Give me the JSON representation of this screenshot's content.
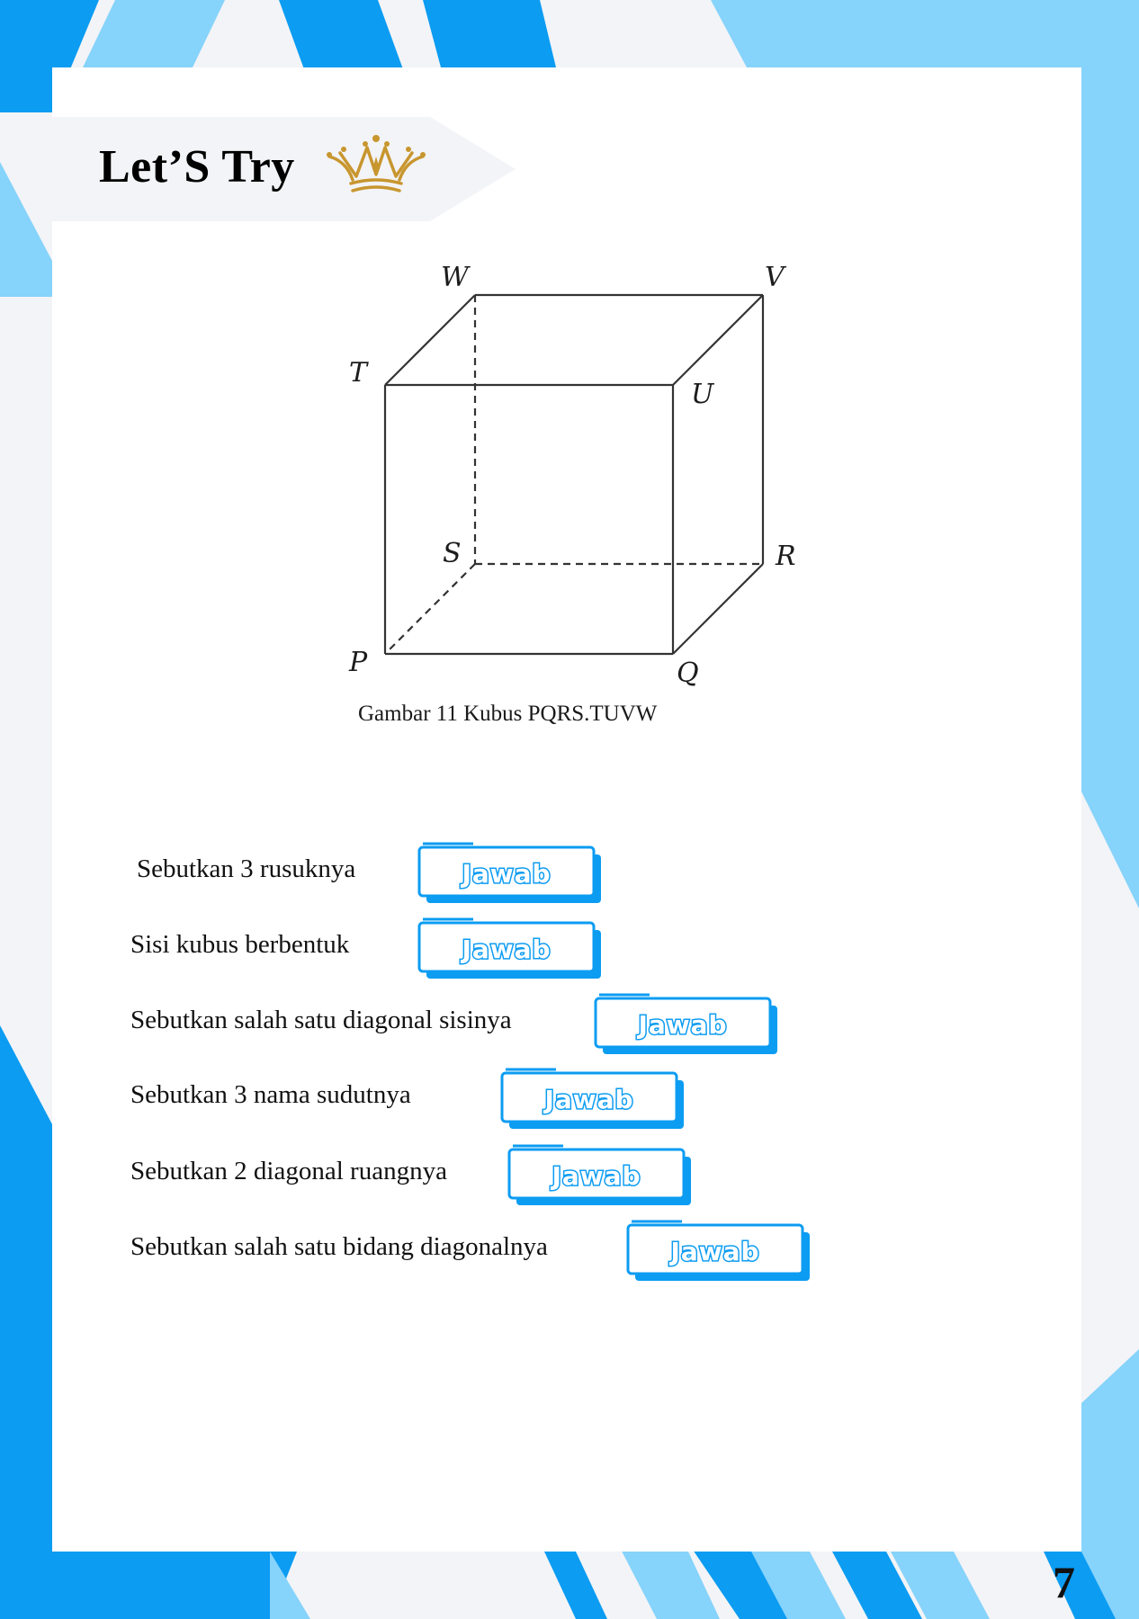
{
  "header": {
    "title": "Let’S Try",
    "icon": "crown-icon"
  },
  "figure": {
    "vertex_labels": {
      "W": "W",
      "V": "V",
      "T": "T",
      "U": "U",
      "S": "S",
      "R": "R",
      "P": "P",
      "Q": "Q"
    },
    "caption": "Gambar 11 Kubus PQRS.TUVW"
  },
  "questions": [
    {
      "text": "Sebutkan 3 rusuknya",
      "button_label": "Jawab"
    },
    {
      "text": "Sisi kubus berbentuk",
      "button_label": "Jawab"
    },
    {
      "text": "Sebutkan salah satu diagonal sisinya",
      "button_label": "Jawab"
    },
    {
      "text": "Sebutkan 3 nama sudutnya",
      "button_label": "Jawab"
    },
    {
      "text": "Sebutkan 2 diagonal ruangnya",
      "button_label": "Jawab"
    },
    {
      "text": "Sebutkan salah satu bidang diagonalnya",
      "button_label": "Jawab"
    }
  ],
  "page_number": "7",
  "colors": {
    "blue_dark": "#0c9cf2",
    "blue_light": "#86d3fb",
    "gold": "#c8962f",
    "button_text": "#ffffff"
  }
}
